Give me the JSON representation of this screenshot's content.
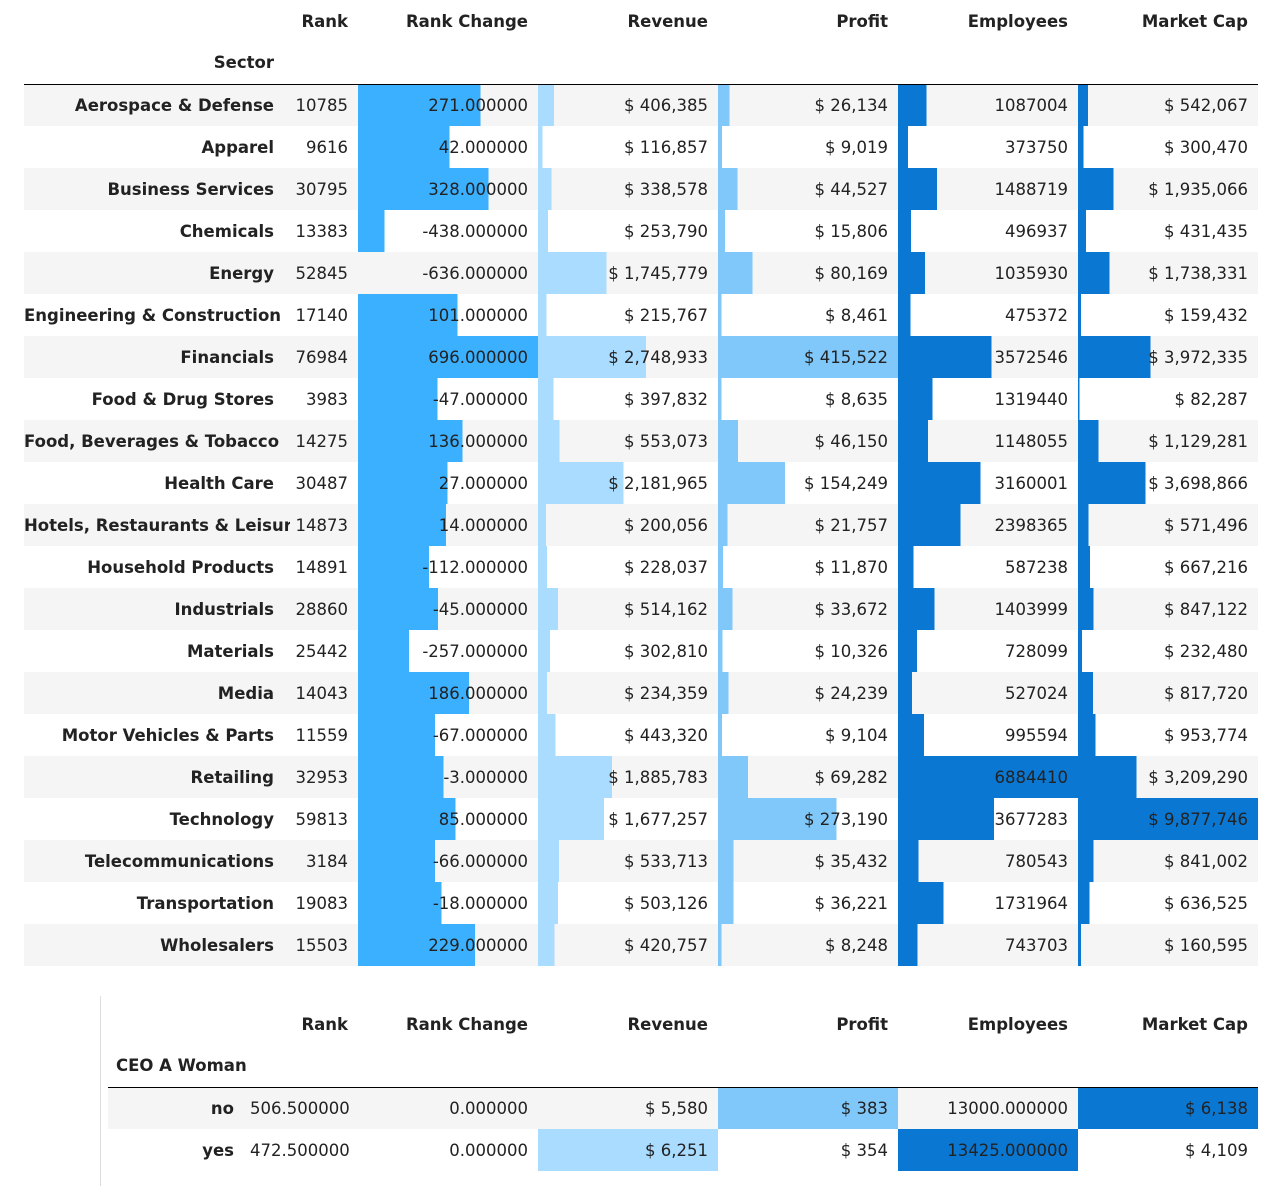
{
  "columns": [
    "Rank",
    "Rank Change",
    "Revenue",
    "Profit",
    "Employees",
    "Market Cap"
  ],
  "sector_table": {
    "index_name": "Sector",
    "rows": [
      {
        "label": "Aerospace & Defense",
        "rank": "10785",
        "rank_change": "271.000000",
        "revenue": "$ 406,385",
        "profit": "$ 26,134",
        "employees": "1087004",
        "market_cap": "$ 542,067",
        "rc_val": 271,
        "rev_val": 406385,
        "pro_val": 26134,
        "emp_val": 1087004,
        "mcap_val": 542067
      },
      {
        "label": "Apparel",
        "rank": "9616",
        "rank_change": "42.000000",
        "revenue": "$ 116,857",
        "profit": "$ 9,019",
        "employees": "373750",
        "market_cap": "$ 300,470",
        "rc_val": 42,
        "rev_val": 116857,
        "pro_val": 9019,
        "emp_val": 373750,
        "mcap_val": 300470
      },
      {
        "label": "Business Services",
        "rank": "30795",
        "rank_change": "328.000000",
        "revenue": "$ 338,578",
        "profit": "$ 44,527",
        "employees": "1488719",
        "market_cap": "$ 1,935,066",
        "rc_val": 328,
        "rev_val": 338578,
        "pro_val": 44527,
        "emp_val": 1488719,
        "mcap_val": 1935066
      },
      {
        "label": "Chemicals",
        "rank": "13383",
        "rank_change": "-438.000000",
        "revenue": "$ 253,790",
        "profit": "$ 15,806",
        "employees": "496937",
        "market_cap": "$ 431,435",
        "rc_val": -438,
        "rev_val": 253790,
        "pro_val": 15806,
        "emp_val": 496937,
        "mcap_val": 431435
      },
      {
        "label": "Energy",
        "rank": "52845",
        "rank_change": "-636.000000",
        "revenue": "$ 1,745,779",
        "profit": "$ 80,169",
        "employees": "1035930",
        "market_cap": "$ 1,738,331",
        "rc_val": -636,
        "rev_val": 1745779,
        "pro_val": 80169,
        "emp_val": 1035930,
        "mcap_val": 1738331
      },
      {
        "label": "Engineering & Construction",
        "rank": "17140",
        "rank_change": "101.000000",
        "revenue": "$ 215,767",
        "profit": "$ 8,461",
        "employees": "475372",
        "market_cap": "$ 159,432",
        "rc_val": 101,
        "rev_val": 215767,
        "pro_val": 8461,
        "emp_val": 475372,
        "mcap_val": 159432
      },
      {
        "label": "Financials",
        "rank": "76984",
        "rank_change": "696.000000",
        "revenue": "$ 2,748,933",
        "profit": "$ 415,522",
        "employees": "3572546",
        "market_cap": "$ 3,972,335",
        "rc_val": 696,
        "rev_val": 2748933,
        "pro_val": 415522,
        "emp_val": 3572546,
        "mcap_val": 3972335
      },
      {
        "label": "Food & Drug Stores",
        "rank": "3983",
        "rank_change": "-47.000000",
        "revenue": "$ 397,832",
        "profit": "$ 8,635",
        "employees": "1319440",
        "market_cap": "$ 82,287",
        "rc_val": -47,
        "rev_val": 397832,
        "pro_val": 8635,
        "emp_val": 1319440,
        "mcap_val": 82287
      },
      {
        "label": "Food, Beverages & Tobacco",
        "rank": "14275",
        "rank_change": "136.000000",
        "revenue": "$ 553,073",
        "profit": "$ 46,150",
        "employees": "1148055",
        "market_cap": "$ 1,129,281",
        "rc_val": 136,
        "rev_val": 553073,
        "pro_val": 46150,
        "emp_val": 1148055,
        "mcap_val": 1129281
      },
      {
        "label": "Health Care",
        "rank": "30487",
        "rank_change": "27.000000",
        "revenue": "$ 2,181,965",
        "profit": "$ 154,249",
        "employees": "3160001",
        "market_cap": "$ 3,698,866",
        "rc_val": 27,
        "rev_val": 2181965,
        "pro_val": 154249,
        "emp_val": 3160001,
        "mcap_val": 3698866
      },
      {
        "label": "Hotels, Restaurants & Leisure",
        "rank": "14873",
        "rank_change": "14.000000",
        "revenue": "$ 200,056",
        "profit": "$ 21,757",
        "employees": "2398365",
        "market_cap": "$ 571,496",
        "rc_val": 14,
        "rev_val": 200056,
        "pro_val": 21757,
        "emp_val": 2398365,
        "mcap_val": 571496
      },
      {
        "label": "Household Products",
        "rank": "14891",
        "rank_change": "-112.000000",
        "revenue": "$ 228,037",
        "profit": "$ 11,870",
        "employees": "587238",
        "market_cap": "$ 667,216",
        "rc_val": -112,
        "rev_val": 228037,
        "pro_val": 11870,
        "emp_val": 587238,
        "mcap_val": 667216
      },
      {
        "label": "Industrials",
        "rank": "28860",
        "rank_change": "-45.000000",
        "revenue": "$ 514,162",
        "profit": "$ 33,672",
        "employees": "1403999",
        "market_cap": "$ 847,122",
        "rc_val": -45,
        "rev_val": 514162,
        "pro_val": 33672,
        "emp_val": 1403999,
        "mcap_val": 847122
      },
      {
        "label": "Materials",
        "rank": "25442",
        "rank_change": "-257.000000",
        "revenue": "$ 302,810",
        "profit": "$ 10,326",
        "employees": "728099",
        "market_cap": "$ 232,480",
        "rc_val": -257,
        "rev_val": 302810,
        "pro_val": 10326,
        "emp_val": 728099,
        "mcap_val": 232480
      },
      {
        "label": "Media",
        "rank": "14043",
        "rank_change": "186.000000",
        "revenue": "$ 234,359",
        "profit": "$ 24,239",
        "employees": "527024",
        "market_cap": "$ 817,720",
        "rc_val": 186,
        "rev_val": 234359,
        "pro_val": 24239,
        "emp_val": 527024,
        "mcap_val": 817720
      },
      {
        "label": "Motor Vehicles & Parts",
        "rank": "11559",
        "rank_change": "-67.000000",
        "revenue": "$ 443,320",
        "profit": "$ 9,104",
        "employees": "995594",
        "market_cap": "$ 953,774",
        "rc_val": -67,
        "rev_val": 443320,
        "pro_val": 9104,
        "emp_val": 995594,
        "mcap_val": 953774
      },
      {
        "label": "Retailing",
        "rank": "32953",
        "rank_change": "-3.000000",
        "revenue": "$ 1,885,783",
        "profit": "$ 69,282",
        "employees": "6884410",
        "market_cap": "$ 3,209,290",
        "rc_val": -3,
        "rev_val": 1885783,
        "pro_val": 69282,
        "emp_val": 6884410,
        "mcap_val": 3209290
      },
      {
        "label": "Technology",
        "rank": "59813",
        "rank_change": "85.000000",
        "revenue": "$ 1,677,257",
        "profit": "$ 273,190",
        "employees": "3677283",
        "market_cap": "$ 9,877,746",
        "rc_val": 85,
        "rev_val": 1677257,
        "pro_val": 273190,
        "emp_val": 3677283,
        "mcap_val": 9877746
      },
      {
        "label": "Telecommunications",
        "rank": "3184",
        "rank_change": "-66.000000",
        "revenue": "$ 533,713",
        "profit": "$ 35,432",
        "employees": "780543",
        "market_cap": "$ 841,002",
        "rc_val": -66,
        "rev_val": 533713,
        "pro_val": 35432,
        "emp_val": 780543,
        "mcap_val": 841002
      },
      {
        "label": "Transportation",
        "rank": "19083",
        "rank_change": "-18.000000",
        "revenue": "$ 503,126",
        "profit": "$ 36,221",
        "employees": "1731964",
        "market_cap": "$ 636,525",
        "rc_val": -18,
        "rev_val": 503126,
        "pro_val": 36221,
        "emp_val": 1731964,
        "mcap_val": 636525
      },
      {
        "label": "Wholesalers",
        "rank": "15503",
        "rank_change": "229.000000",
        "revenue": "$ 420,757",
        "profit": "$ 8,248",
        "employees": "743703",
        "market_cap": "$ 160,595",
        "rc_val": 229,
        "rev_val": 420757,
        "pro_val": 8248,
        "emp_val": 743703,
        "mcap_val": 160595
      }
    ]
  },
  "ceo_table": {
    "index_name": "CEO A Woman",
    "rows": [
      {
        "label": "no",
        "rank": "506.500000",
        "rank_change": "0.000000",
        "revenue": "$ 5,580",
        "profit": "$ 383",
        "employees": "13000.000000",
        "market_cap": "$ 6,138",
        "hl_revenue": false,
        "hl_profit": true,
        "hl_employees": false,
        "hl_market_cap": true
      },
      {
        "label": "yes",
        "rank": "472.500000",
        "rank_change": "0.000000",
        "revenue": "$ 6,251",
        "profit": "$ 354",
        "employees": "13425.000000",
        "market_cap": "$ 4,109",
        "hl_revenue": true,
        "hl_profit": false,
        "hl_employees": true,
        "hl_market_cap": false
      }
    ]
  },
  "colors": {
    "rank_change_bar": "#3ab0ff",
    "revenue_bar": "#aadcff",
    "profit_bar": "#80c8fa",
    "employees_bar": "#0a78d2",
    "market_cap_bar": "#0a78d2",
    "row_stripe": "#f5f5f5"
  }
}
